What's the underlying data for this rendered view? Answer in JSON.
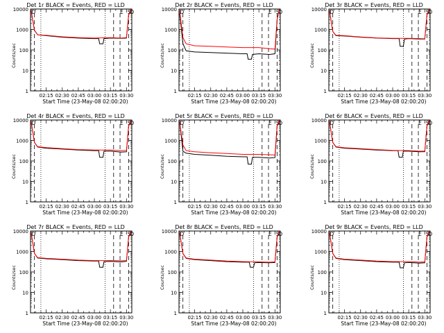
{
  "chart_data": {
    "type": "line",
    "layout": {
      "rows": 3,
      "cols": 3
    },
    "x_tick_labels": [
      "02:15",
      "02:30",
      "02:45",
      "03:00",
      "03:15",
      "03:30"
    ],
    "x_tick_minutes": [
      135,
      150,
      165,
      180,
      195,
      210
    ],
    "x_range_minutes": [
      120.33,
      215
    ],
    "y_scale": "log",
    "y_range": [
      1,
      10000
    ],
    "y_tick_labels": [
      "1",
      "10",
      "100",
      "1000",
      "10000"
    ],
    "y_tick_values": [
      1,
      10,
      100,
      1000,
      10000
    ],
    "ylabel": "Counts/sec",
    "xlabel": "Start Time (23-May-08 02:00:20)",
    "legend": {
      "events_color": "#000000",
      "lld_color": "#ff0000"
    },
    "marker_letters": [
      "D",
      "E",
      "S",
      "O"
    ],
    "vlines_minutes": {
      "dotted": [
        130,
        190
      ],
      "dashed": [
        124,
        198,
        204,
        212
      ]
    },
    "panels": [
      {
        "title": "Det 1r BLACK = Events, RED = LLD",
        "events": [
          [
            121,
            8000
          ],
          [
            124,
            900
          ],
          [
            127,
            550
          ],
          [
            135,
            500
          ],
          [
            150,
            420
          ],
          [
            165,
            380
          ],
          [
            180,
            360
          ],
          [
            184,
            360
          ],
          [
            185,
            200
          ],
          [
            188,
            200
          ],
          [
            189,
            360
          ],
          [
            195,
            380
          ],
          [
            205,
            370
          ],
          [
            210,
            380
          ],
          [
            212,
            5000
          ],
          [
            214,
            9500
          ]
        ],
        "lld": [
          [
            121,
            8000
          ],
          [
            124,
            900
          ],
          [
            127,
            550
          ],
          [
            135,
            520
          ],
          [
            150,
            440
          ],
          [
            165,
            400
          ],
          [
            180,
            380
          ],
          [
            195,
            400
          ],
          [
            205,
            380
          ],
          [
            210,
            400
          ],
          [
            212,
            5000
          ],
          [
            214,
            9500
          ]
        ]
      },
      {
        "title": "Det 2r BLACK = Events, RED = LLD",
        "events": [
          [
            121,
            6000
          ],
          [
            124,
            200
          ],
          [
            127,
            90
          ],
          [
            135,
            80
          ],
          [
            150,
            75
          ],
          [
            165,
            70
          ],
          [
            180,
            65
          ],
          [
            184,
            65
          ],
          [
            185,
            35
          ],
          [
            188,
            35
          ],
          [
            189,
            60
          ],
          [
            195,
            65
          ],
          [
            205,
            60
          ],
          [
            210,
            65
          ],
          [
            212,
            3000
          ],
          [
            214,
            9500
          ]
        ],
        "lld": [
          [
            121,
            8000
          ],
          [
            124,
            400
          ],
          [
            127,
            200
          ],
          [
            135,
            160
          ],
          [
            150,
            150
          ],
          [
            165,
            140
          ],
          [
            180,
            130
          ],
          [
            195,
            130
          ],
          [
            205,
            115
          ],
          [
            210,
            110
          ],
          [
            212,
            3000
          ],
          [
            214,
            9500
          ]
        ]
      },
      {
        "title": "Det 3r BLACK = Events, RED = LLD",
        "events": [
          [
            121,
            8000
          ],
          [
            124,
            800
          ],
          [
            127,
            500
          ],
          [
            135,
            480
          ],
          [
            150,
            420
          ],
          [
            165,
            380
          ],
          [
            180,
            360
          ],
          [
            186,
            360
          ],
          [
            187,
            150
          ],
          [
            190,
            150
          ],
          [
            191,
            340
          ],
          [
            195,
            360
          ],
          [
            205,
            340
          ],
          [
            210,
            340
          ],
          [
            212,
            5000
          ],
          [
            214,
            9500
          ]
        ],
        "lld": [
          [
            121,
            8000
          ],
          [
            124,
            800
          ],
          [
            127,
            520
          ],
          [
            135,
            500
          ],
          [
            150,
            430
          ],
          [
            165,
            390
          ],
          [
            180,
            370
          ],
          [
            195,
            370
          ],
          [
            205,
            360
          ],
          [
            210,
            350
          ],
          [
            212,
            5000
          ],
          [
            214,
            9500
          ]
        ]
      },
      {
        "title": "Det 4r BLACK = Events, RED = LLD",
        "events": [
          [
            121,
            8000
          ],
          [
            124,
            800
          ],
          [
            127,
            480
          ],
          [
            135,
            420
          ],
          [
            150,
            380
          ],
          [
            165,
            340
          ],
          [
            180,
            320
          ],
          [
            184,
            320
          ],
          [
            185,
            150
          ],
          [
            188,
            150
          ],
          [
            189,
            300
          ],
          [
            195,
            300
          ],
          [
            205,
            270
          ],
          [
            210,
            280
          ],
          [
            212,
            5000
          ],
          [
            214,
            9500
          ]
        ],
        "lld": [
          [
            121,
            8000
          ],
          [
            124,
            800
          ],
          [
            127,
            500
          ],
          [
            135,
            450
          ],
          [
            150,
            400
          ],
          [
            165,
            360
          ],
          [
            180,
            340
          ],
          [
            195,
            340
          ],
          [
            205,
            320
          ],
          [
            210,
            330
          ],
          [
            212,
            5000
          ],
          [
            214,
            9500
          ]
        ]
      },
      {
        "title": "Det 5r BLACK = Events, RED = LLD",
        "events": [
          [
            121,
            8000
          ],
          [
            124,
            300
          ],
          [
            127,
            240
          ],
          [
            135,
            210
          ],
          [
            150,
            190
          ],
          [
            165,
            170
          ],
          [
            180,
            160
          ],
          [
            184,
            160
          ],
          [
            185,
            70
          ],
          [
            188,
            70
          ],
          [
            189,
            150
          ],
          [
            195,
            150
          ],
          [
            205,
            140
          ],
          [
            210,
            145
          ],
          [
            212,
            5000
          ],
          [
            214,
            9500
          ]
        ],
        "lld": [
          [
            121,
            8000
          ],
          [
            124,
            600
          ],
          [
            127,
            320
          ],
          [
            135,
            280
          ],
          [
            150,
            250
          ],
          [
            165,
            230
          ],
          [
            180,
            210
          ],
          [
            195,
            210
          ],
          [
            205,
            200
          ],
          [
            210,
            195
          ],
          [
            212,
            5000
          ],
          [
            214,
            9500
          ]
        ]
      },
      {
        "title": "Det 6r BLACK = Events, RED = LLD",
        "events": [
          [
            121,
            8000
          ],
          [
            124,
            800
          ],
          [
            127,
            480
          ],
          [
            135,
            420
          ],
          [
            150,
            380
          ],
          [
            165,
            340
          ],
          [
            180,
            320
          ],
          [
            185,
            320
          ],
          [
            186,
            150
          ],
          [
            189,
            150
          ],
          [
            190,
            300
          ],
          [
            195,
            300
          ],
          [
            205,
            280
          ],
          [
            210,
            285
          ],
          [
            212,
            5000
          ],
          [
            214,
            9500
          ]
        ],
        "lld": [
          [
            121,
            8000
          ],
          [
            124,
            800
          ],
          [
            127,
            500
          ],
          [
            135,
            440
          ],
          [
            150,
            400
          ],
          [
            165,
            360
          ],
          [
            180,
            330
          ],
          [
            195,
            320
          ],
          [
            205,
            300
          ],
          [
            210,
            300
          ],
          [
            212,
            5000
          ],
          [
            214,
            9500
          ]
        ]
      },
      {
        "title": "Det 7r BLACK = Events, RED = LLD",
        "events": [
          [
            121,
            8000
          ],
          [
            124,
            800
          ],
          [
            127,
            480
          ],
          [
            135,
            440
          ],
          [
            150,
            400
          ],
          [
            165,
            360
          ],
          [
            180,
            340
          ],
          [
            184,
            340
          ],
          [
            185,
            170
          ],
          [
            188,
            170
          ],
          [
            189,
            320
          ],
          [
            195,
            330
          ],
          [
            205,
            310
          ],
          [
            210,
            330
          ],
          [
            212,
            5000
          ],
          [
            214,
            9500
          ]
        ],
        "lld": [
          [
            121,
            8000
          ],
          [
            124,
            800
          ],
          [
            127,
            500
          ],
          [
            135,
            460
          ],
          [
            150,
            420
          ],
          [
            165,
            380
          ],
          [
            180,
            360
          ],
          [
            195,
            360
          ],
          [
            205,
            350
          ],
          [
            210,
            360
          ],
          [
            212,
            5000
          ],
          [
            214,
            9500
          ]
        ]
      },
      {
        "title": "Det 8r BLACK = Events, RED = LLD",
        "events": [
          [
            121,
            8000
          ],
          [
            124,
            800
          ],
          [
            127,
            460
          ],
          [
            135,
            400
          ],
          [
            150,
            360
          ],
          [
            165,
            320
          ],
          [
            180,
            300
          ],
          [
            186,
            300
          ],
          [
            187,
            170
          ],
          [
            190,
            170
          ],
          [
            191,
            280
          ],
          [
            195,
            290
          ],
          [
            205,
            280
          ],
          [
            210,
            290
          ],
          [
            212,
            5000
          ],
          [
            214,
            9500
          ]
        ],
        "lld": [
          [
            121,
            8000
          ],
          [
            124,
            800
          ],
          [
            127,
            480
          ],
          [
            135,
            420
          ],
          [
            150,
            380
          ],
          [
            165,
            340
          ],
          [
            180,
            320
          ],
          [
            195,
            310
          ],
          [
            205,
            300
          ],
          [
            210,
            310
          ],
          [
            212,
            5000
          ],
          [
            214,
            9500
          ]
        ]
      },
      {
        "title": "Det 9r BLACK = Events, RED = LLD",
        "events": [
          [
            121,
            8000
          ],
          [
            124,
            800
          ],
          [
            127,
            460
          ],
          [
            135,
            400
          ],
          [
            150,
            360
          ],
          [
            165,
            320
          ],
          [
            180,
            300
          ],
          [
            186,
            300
          ],
          [
            187,
            160
          ],
          [
            190,
            160
          ],
          [
            191,
            280
          ],
          [
            195,
            290
          ],
          [
            205,
            270
          ],
          [
            210,
            280
          ],
          [
            212,
            5000
          ],
          [
            214,
            9500
          ]
        ],
        "lld": [
          [
            121,
            8000
          ],
          [
            124,
            800
          ],
          [
            127,
            480
          ],
          [
            135,
            420
          ],
          [
            150,
            380
          ],
          [
            165,
            340
          ],
          [
            180,
            320
          ],
          [
            195,
            320
          ],
          [
            205,
            300
          ],
          [
            210,
            310
          ],
          [
            212,
            5000
          ],
          [
            214,
            9500
          ]
        ]
      }
    ]
  }
}
